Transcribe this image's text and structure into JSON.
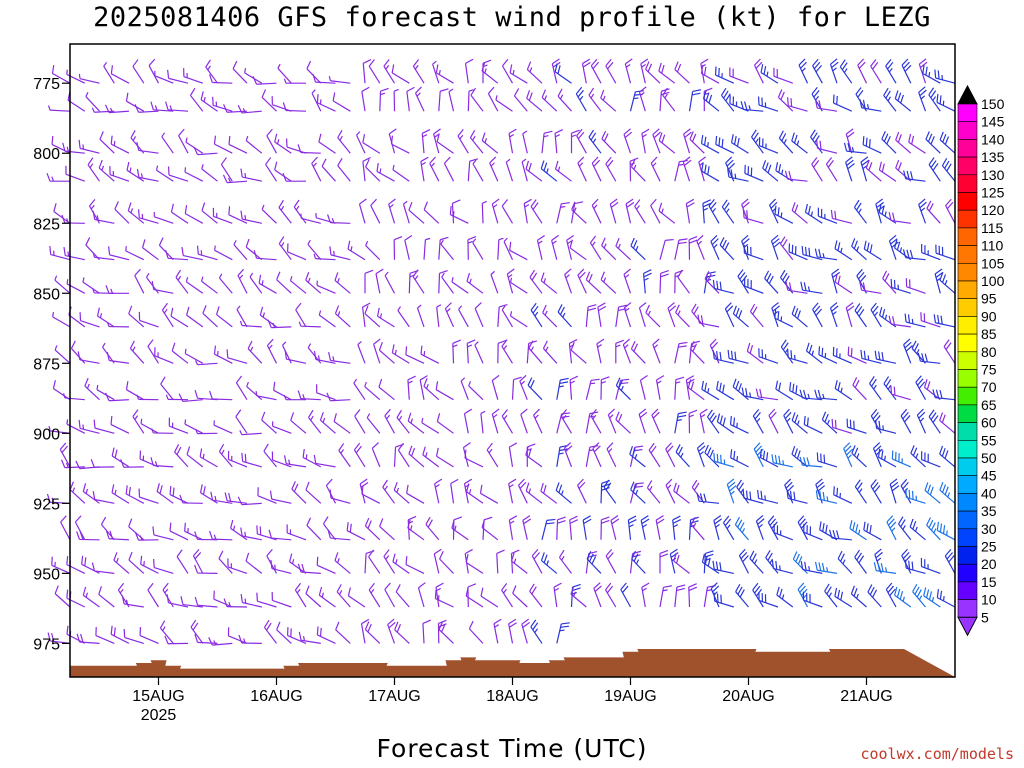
{
  "title": "2025081406 GFS forecast wind profile (kt) for LEZG",
  "x_axis_title": "Forecast Time (UTC)",
  "credit": "coolwx.com/models",
  "chart_data": {
    "type": "wind_barb_profile",
    "title": "2025081406 GFS forecast wind profile (kt) for LEZG",
    "xlabel": "Forecast Time (UTC)",
    "ylabel": "",
    "x_start": "2025-08-14 06",
    "x_end": "2025-08-21 18",
    "x_step_hours": 3,
    "x_ticks": [
      {
        "label": "15AUG",
        "sublabel": "2025",
        "time": "2025-08-15 00"
      },
      {
        "label": "16AUG",
        "sublabel": "",
        "time": "2025-08-16 00"
      },
      {
        "label": "17AUG",
        "sublabel": "",
        "time": "2025-08-17 00"
      },
      {
        "label": "18AUG",
        "sublabel": "",
        "time": "2025-08-18 00"
      },
      {
        "label": "19AUG",
        "sublabel": "",
        "time": "2025-08-19 00"
      },
      {
        "label": "20AUG",
        "sublabel": "",
        "time": "2025-08-20 00"
      },
      {
        "label": "21AUG",
        "sublabel": "",
        "time": "2025-08-21 00"
      }
    ],
    "y_ticks": [
      775,
      800,
      825,
      850,
      875,
      900,
      925,
      950,
      975
    ],
    "ylim": [
      761,
      987
    ],
    "y_inverted": true,
    "levels_hpa": [
      760,
      775,
      785,
      800,
      810,
      825,
      838,
      850,
      862,
      875,
      888,
      900,
      912,
      925,
      938,
      950,
      962,
      975
    ],
    "terrain_color": "#a0522d",
    "terrain_hpa": [
      983,
      983,
      983,
      983,
      983,
      982,
      981,
      983,
      984,
      984,
      984,
      984,
      984,
      984,
      984,
      983,
      982,
      982,
      982,
      982,
      982,
      982,
      983,
      983,
      983,
      983,
      981,
      980,
      981,
      981,
      981,
      982,
      982,
      981,
      980,
      980,
      980,
      980,
      978,
      977,
      977,
      977,
      977,
      977,
      977,
      977,
      977,
      978,
      978,
      978,
      978,
      978,
      977,
      977,
      977,
      977,
      977
    ],
    "colorbar": {
      "values": [
        150,
        145,
        140,
        135,
        130,
        125,
        120,
        115,
        110,
        105,
        100,
        95,
        90,
        85,
        80,
        75,
        70,
        65,
        60,
        55,
        50,
        45,
        40,
        35,
        30,
        25,
        20,
        15,
        10,
        5
      ],
      "colors": [
        "#000000",
        "#ff00ff",
        "#ff00cc",
        "#ff0099",
        "#ff0066",
        "#ff0033",
        "#ff0000",
        "#ff3300",
        "#ff6600",
        "#ff7700",
        "#ff8800",
        "#ffaa00",
        "#ffcc00",
        "#ffee00",
        "#ffff00",
        "#ccff00",
        "#99ff00",
        "#44ee00",
        "#00dd44",
        "#00ddaa",
        "#00eecc",
        "#00ccee",
        "#00aaff",
        "#0088ff",
        "#0066ff",
        "#0044ff",
        "#0022ee",
        "#2200ff",
        "#6600ff",
        "#9933ff"
      ]
    },
    "barb_colors": {
      "light": "#8a2be2",
      "moderate": "#2a36d8",
      "strong": "#1e73e8"
    },
    "regimes": [
      {
        "from_h": 0,
        "to_h": 60,
        "dir_deg": 300,
        "speed_kt": 10
      },
      {
        "from_h": 60,
        "to_h": 96,
        "dir_deg": 330,
        "speed_kt": 10
      },
      {
        "from_h": 96,
        "to_h": 130,
        "dir_deg": 340,
        "speed_kt": 18
      },
      {
        "from_h": 130,
        "to_h": 180,
        "dir_deg": 310,
        "speed_kt": 25
      }
    ]
  }
}
